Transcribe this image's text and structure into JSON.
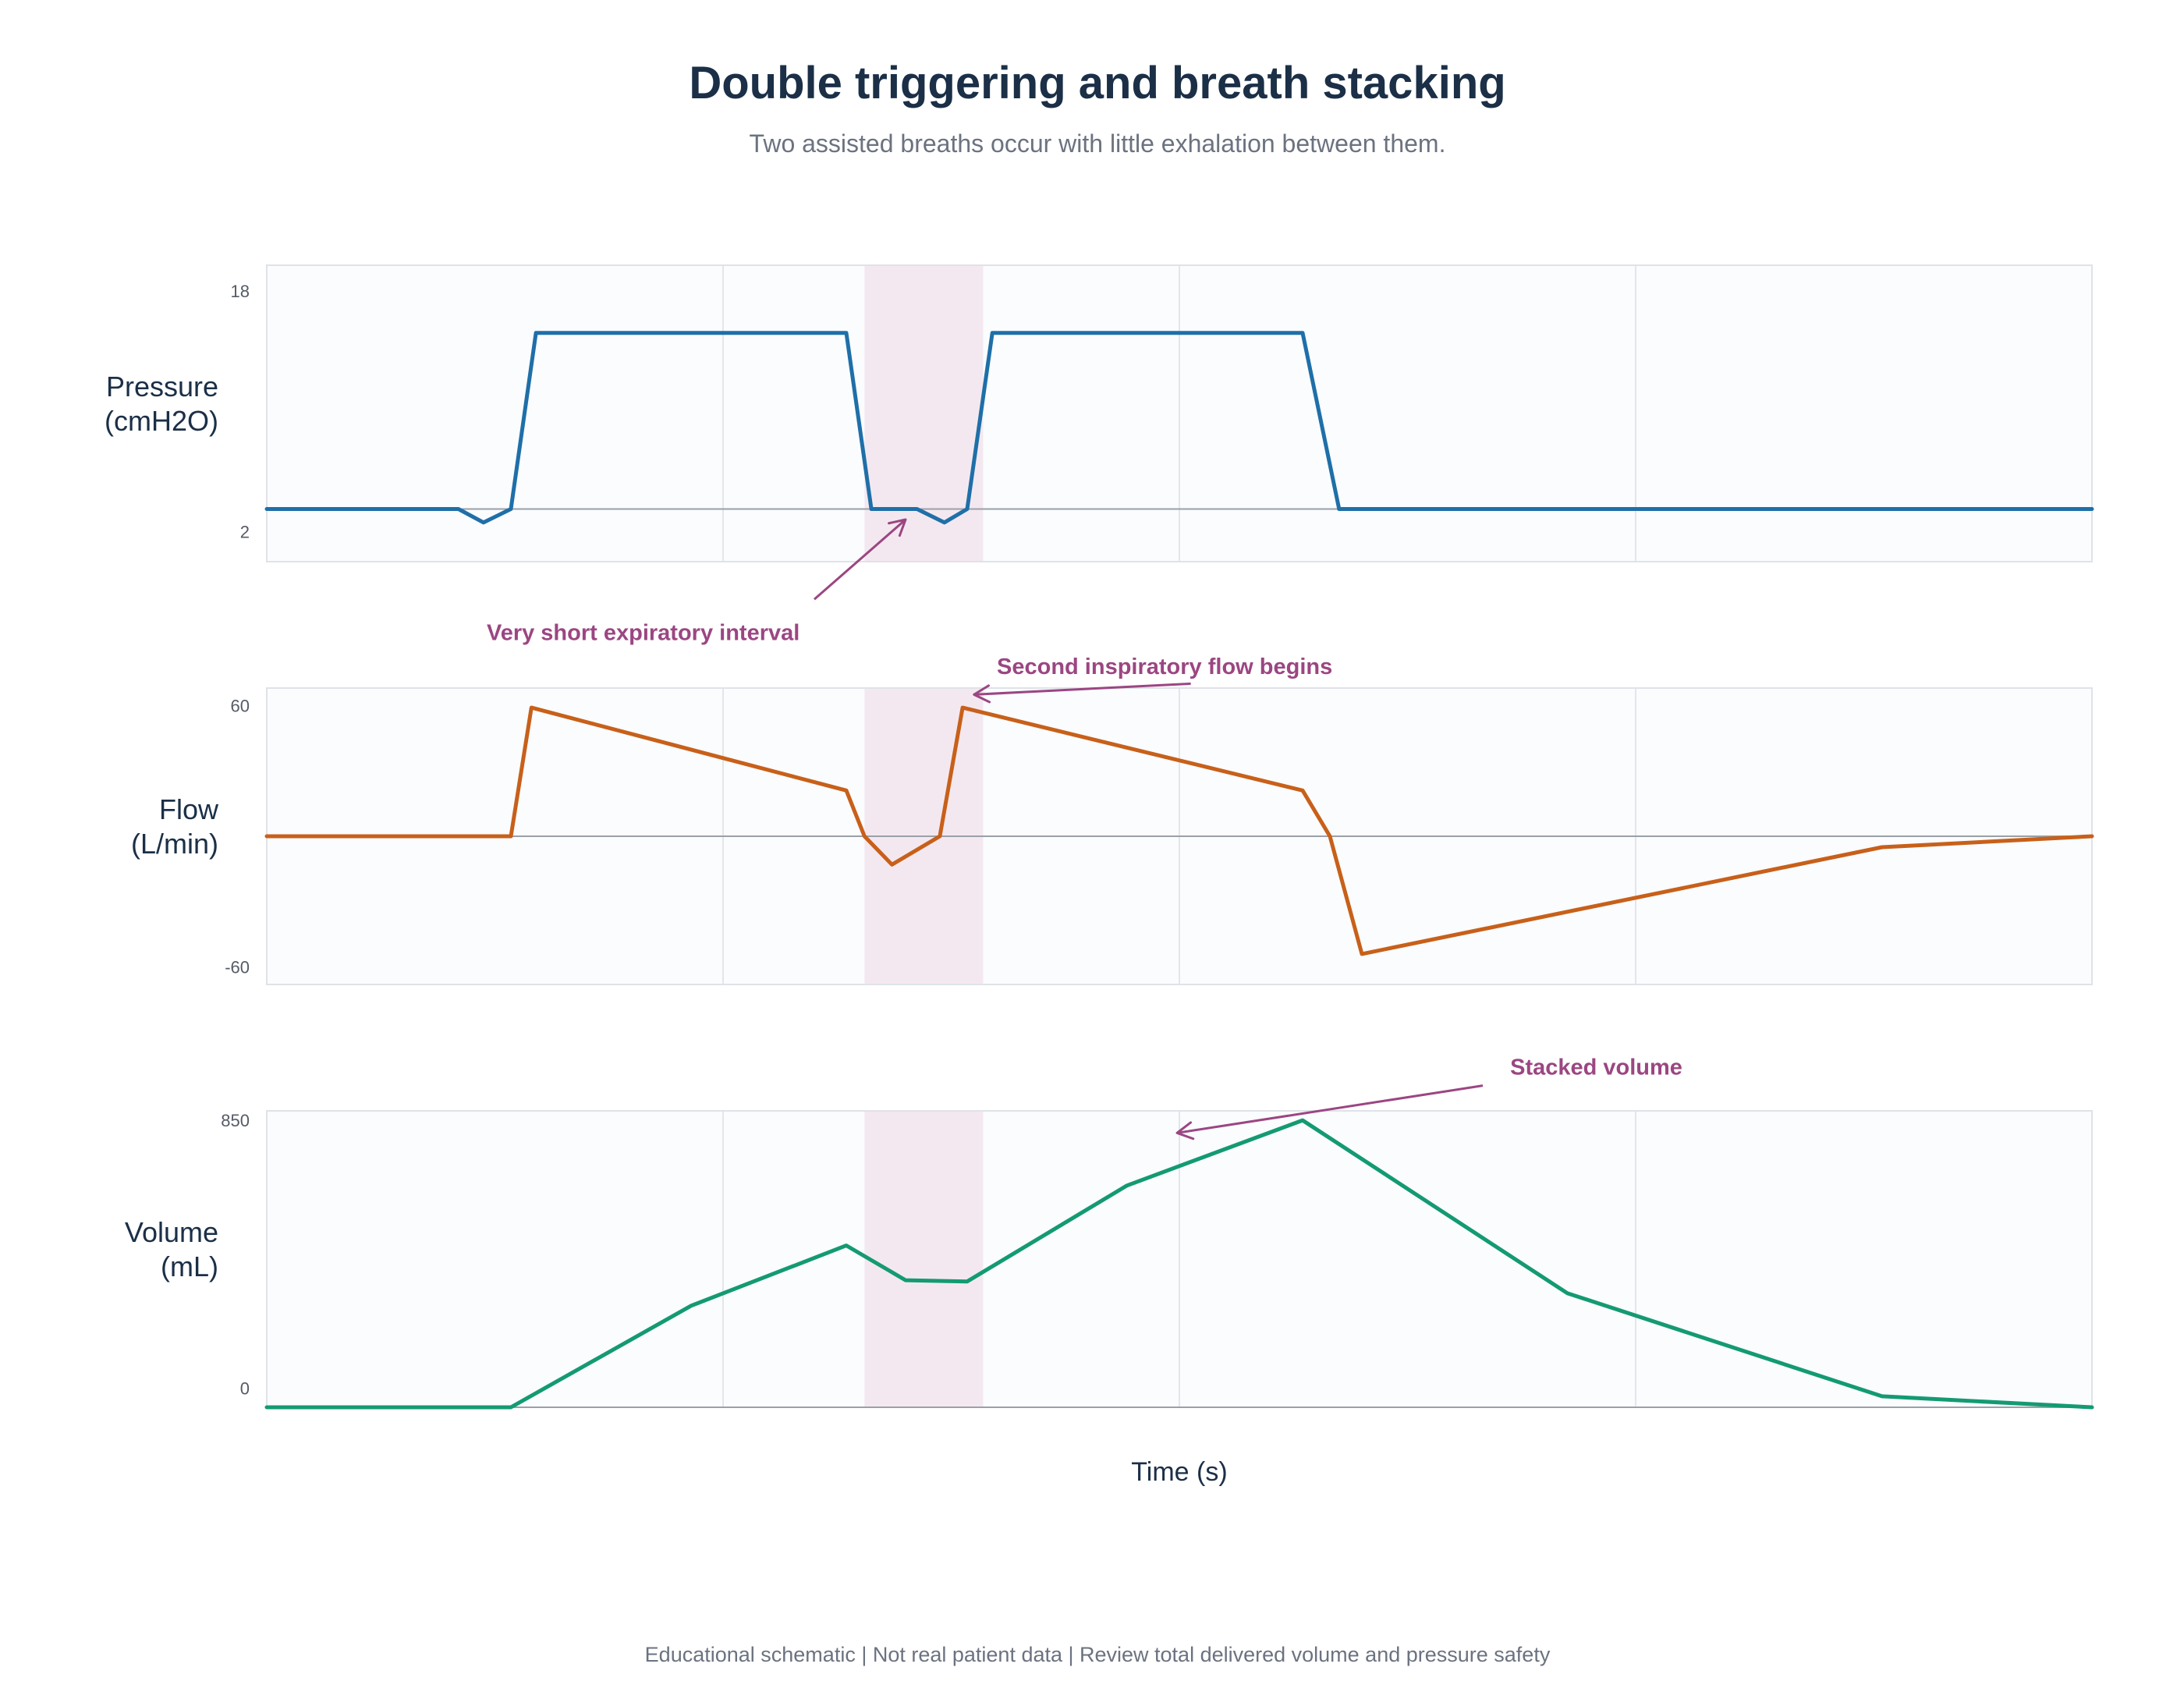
{
  "chart_data": {
    "type": "line",
    "title": "Double triggering and breath stacking",
    "subtitle": "Two assisted breaths occur with little exhalation between them.",
    "xlabel": "Time (s)",
    "footer": "Educational schematic | Not real patient data | Review total delivered volume and pressure safety",
    "xlim": [
      0,
      8
    ],
    "x_gridlines": [
      2,
      4,
      6
    ],
    "highlight": {
      "x_start": 2.62,
      "x_end": 3.14,
      "color": "#f4e8f0"
    },
    "colors": {
      "pressure": "#1f6fa8",
      "flow": "#c8601a",
      "volume": "#149a72",
      "annotation": "#9b4682",
      "panel_bg": "#fafcfe",
      "axis_line": "#9aa0a8"
    },
    "panels": [
      {
        "key": "pressure",
        "ylabel": [
          "Pressure",
          "(cmH2O)"
        ],
        "ylim": [
          0,
          19.7
        ],
        "yticks": [
          2,
          18
        ],
        "baseline": 3.5,
        "x": [
          0,
          0.84,
          0.95,
          1.07,
          1.18,
          2.54,
          2.65,
          2.85,
          2.97,
          3.07,
          3.18,
          4.54,
          4.7,
          8
        ],
        "y": [
          3.5,
          3.5,
          2.6,
          3.5,
          15.2,
          15.2,
          3.5,
          3.5,
          2.6,
          3.5,
          15.2,
          15.2,
          3.5,
          3.5
        ]
      },
      {
        "key": "flow",
        "ylabel": [
          "Flow",
          "(L/min)"
        ],
        "ylim": [
          -68,
          68
        ],
        "yticks": [
          -60,
          60
        ],
        "baseline": 0,
        "x": [
          0,
          1.07,
          1.16,
          2.54,
          2.62,
          2.74,
          2.95,
          3.05,
          4.54,
          4.66,
          4.8,
          7.08,
          8
        ],
        "y": [
          0,
          0,
          59,
          21,
          0,
          -13,
          0,
          59,
          21,
          0,
          -54,
          -5,
          0
        ]
      },
      {
        "key": "volume",
        "ylabel": [
          "Volume",
          "(mL)"
        ],
        "ylim": [
          -60,
          880
        ],
        "yticks": [
          0,
          850
        ],
        "baseline": -60,
        "x": [
          0,
          1.07,
          1.86,
          2.54,
          2.8,
          3.07,
          3.77,
          4.54,
          5.7,
          7.08,
          8
        ],
        "y": [
          -60,
          -60,
          262,
          453,
          343,
          339,
          643,
          850,
          302,
          -25,
          -60
        ]
      }
    ],
    "annotations": [
      {
        "text": "Very short expiratory interval",
        "panel": 0,
        "x": 2.8,
        "y": 2.8,
        "label_x": 1.65,
        "label_y": -4.7,
        "tail_x": 2.4,
        "tail_y": -2.5,
        "anchor": "middle"
      },
      {
        "text": "Second inspiratory flow begins",
        "panel": 1,
        "x": 3.1,
        "y": 65,
        "label_x": 3.2,
        "label_y": 78,
        "tail_x": 4.05,
        "tail_y": 70,
        "anchor": "start"
      },
      {
        "text": "Stacked volume",
        "panel": 2,
        "x": 3.99,
        "y": 810,
        "label_x": 5.45,
        "label_y": 1020,
        "tail_x": 5.33,
        "tail_y": 960,
        "anchor": "start"
      }
    ]
  }
}
